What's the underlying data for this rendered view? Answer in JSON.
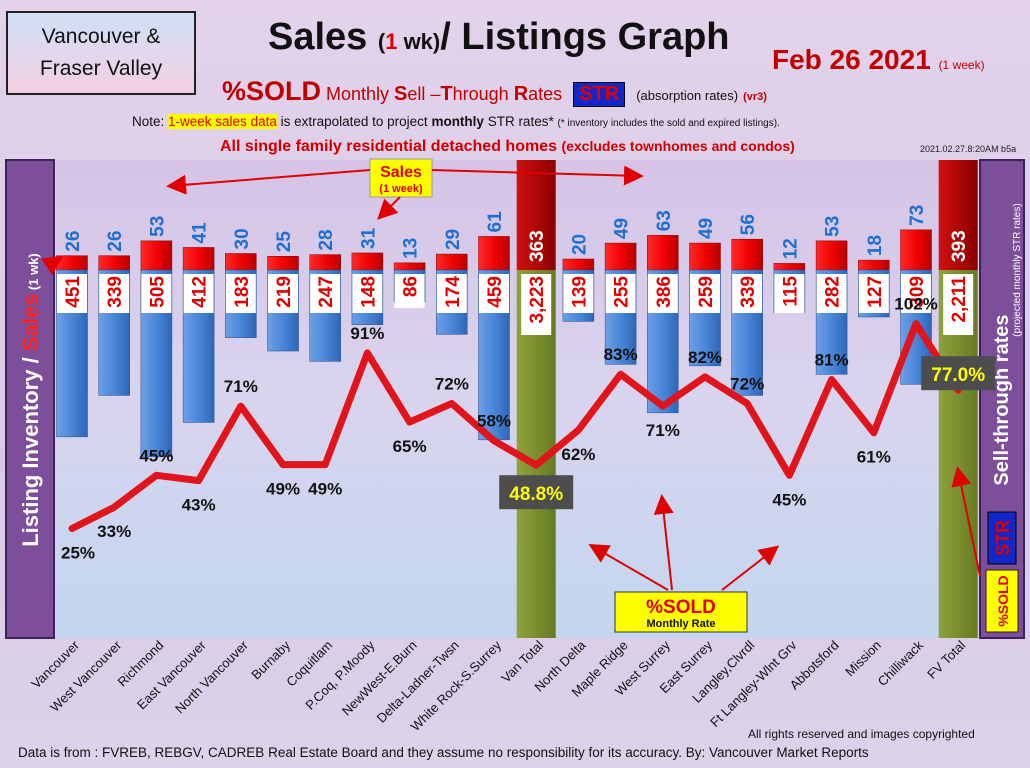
{
  "header": {
    "region_line1": "Vancouver &",
    "region_line2": "Fraser Valley",
    "title_part1": "Sales",
    "title_open": "(",
    "title_num": "1",
    "title_wk": " wk)",
    "title_part2": "/ Listings Graph",
    "date": "Feb 26  2021",
    "date_note": "(1 week)",
    "sub_pct": "%SOLD",
    "sub_monthly": " Monthly ",
    "sub_s": "S",
    "sub_ell": "ell –",
    "sub_t": "T",
    "sub_hrough": "hrough ",
    "sub_r": "R",
    "sub_ates": "ates",
    "str_badge": "STR",
    "absorption": "(absorption rates)",
    "version": "(vr3)",
    "note_prefix": "Note: ",
    "note_highlight": "1-week sales data",
    "note_mid": " is extrapolated to project ",
    "note_bold": "monthly",
    "note_mid2": " STR rates* ",
    "note_fine": "(* inventory includes the sold and expired listings).",
    "homes_main": "All single family residential detached homes ",
    "homes_paren": "(excludes townhomes and condos)",
    "timestamp": "2021.02.27.8:20AM b5a"
  },
  "footer": {
    "rights": "All rights reserved and  images copyrighted",
    "source": "Data is from : FVREB, REBGV, CADREB Real Estate Board and they assume no responsibility for its accuracy. By: Vancouver Market Reports"
  },
  "chart_data": {
    "type": "bar",
    "categories": [
      "Vancouver",
      "West Vancouver",
      "Richmond",
      "East Vancouver",
      "North Vancouver",
      "Burnaby",
      "Coquitlam",
      "P.Coq, P.Moody",
      "NewWest-E.Burn",
      "Delta-Ladner-Twsn",
      "White Rock-S.Surrey",
      "Van Total",
      "North Delta",
      "Maple Ridge",
      "West Surrey",
      "East Surrey",
      "Langley,Clvrdl",
      "Ft Langley-Wlnt Grv",
      "Abbotsford",
      "Mission",
      "Chilliwack",
      "FV Total"
    ],
    "series": [
      {
        "name": "Sales",
        "values": [
          26,
          26,
          53,
          41,
          30,
          25,
          28,
          31,
          13,
          29,
          61,
          363,
          20,
          49,
          63,
          49,
          56,
          12,
          53,
          18,
          73,
          393
        ]
      },
      {
        "name": "Listing Inventory",
        "values": [
          451,
          339,
          505,
          412,
          183,
          219,
          247,
          148,
          86,
          174,
          459,
          3223,
          139,
          255,
          386,
          259,
          339,
          115,
          282,
          127,
          309,
          2211
        ]
      },
      {
        "name": "%SOLD",
        "values": [
          25,
          33,
          45,
          43,
          71,
          49,
          49,
          91,
          65,
          72,
          58,
          48.8,
          62,
          83,
          71,
          82,
          72,
          45,
          81,
          61,
          102,
          77.0
        ]
      }
    ],
    "percent_labels": [
      "25%",
      "33%",
      "45%",
      "43%",
      "71%",
      "49%",
      "49%",
      "91%",
      "65%",
      "72%",
      "58%",
      "48.8%",
      "62%",
      "83%",
      "71%",
      "82%",
      "72%",
      "45%",
      "81%",
      "61%",
      "102%",
      "77.0%"
    ],
    "count_labels": {
      "sales": [
        "26",
        "26",
        "53",
        "41",
        "30",
        "25",
        "28",
        "31",
        "13",
        "29",
        "61",
        "363",
        "20",
        "49",
        "63",
        "49",
        "56",
        "12",
        "53",
        "18",
        "73",
        "393"
      ],
      "listings": [
        "451",
        "339",
        "505",
        "412",
        "183",
        "219",
        "247",
        "148",
        "86",
        "174",
        "459",
        "3,223",
        "139",
        "255",
        "386",
        "259",
        "339",
        "115",
        "282",
        "127",
        "309",
        "2,211"
      ]
    },
    "total_indices": [
      11,
      21
    ],
    "ylabel_left_part1": "Listing Inventory",
    "ylabel_left_slash": " / ",
    "ylabel_left_part2": "Sales",
    "ylabel_left_unit": " (1 wk)",
    "ylabel_right_pct": "%SOLD",
    "ylabel_right_str": "STR",
    "ylabel_right_text": " Sell-through rates",
    "ylabel_right_note": "(projected monthly STR rates)",
    "callout_sales": "Sales",
    "callout_sales_sub": "(1 week)",
    "callout_sold": "%SOLD",
    "callout_sold_sub": "Monthly Rate",
    "colors": {
      "sales": "#ee0000",
      "listings": "#4a86d8",
      "line": "#e0141a",
      "total_sales": "#c00000",
      "total_listings": "#7a8c2e",
      "pct_box": "#4d4d4d",
      "pct_box_text": "#ffff00"
    }
  }
}
